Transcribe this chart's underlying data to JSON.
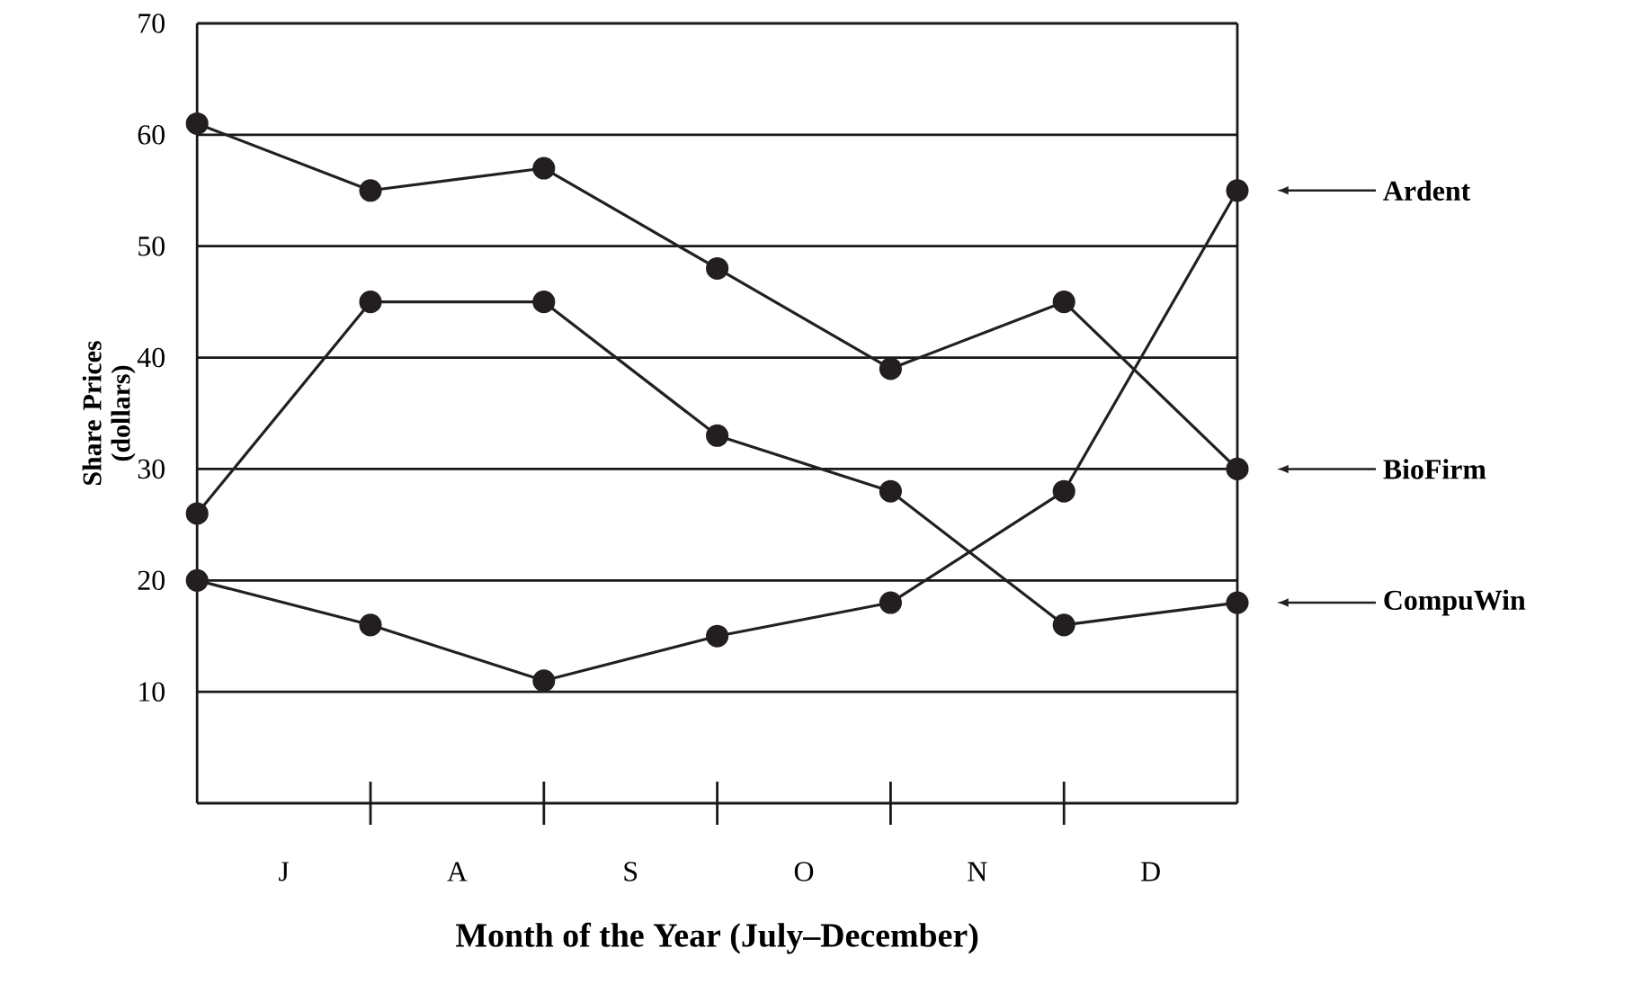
{
  "chart_data": {
    "type": "line",
    "xlabel": "Month of the Year (July–December)",
    "ylabel": "Share Prices (dollars)",
    "categories": [
      null,
      null,
      null,
      null,
      null,
      null,
      null
    ],
    "series": [
      {
        "name": "Ardent",
        "color": "#231f20",
        "values": [
          20,
          16,
          11,
          15,
          18,
          28,
          55
        ]
      },
      {
        "name": "BioFirm",
        "color": "#231f20",
        "values": [
          61,
          55,
          57,
          48,
          39,
          45,
          30
        ]
      },
      {
        "name": "CompuWin",
        "color": "#231f20",
        "values": [
          26,
          45,
          45,
          33,
          28,
          16,
          18
        ]
      }
    ],
    "annotations": [
      "J",
      "A",
      "S",
      "O",
      "N",
      "D"
    ],
    "ylim": [
      0,
      70
    ],
    "yticks": [
      10,
      20,
      30,
      40,
      50,
      60,
      70
    ],
    "grid": "y",
    "legend": "right",
    "marker": "circle",
    "line_style": "solid"
  }
}
